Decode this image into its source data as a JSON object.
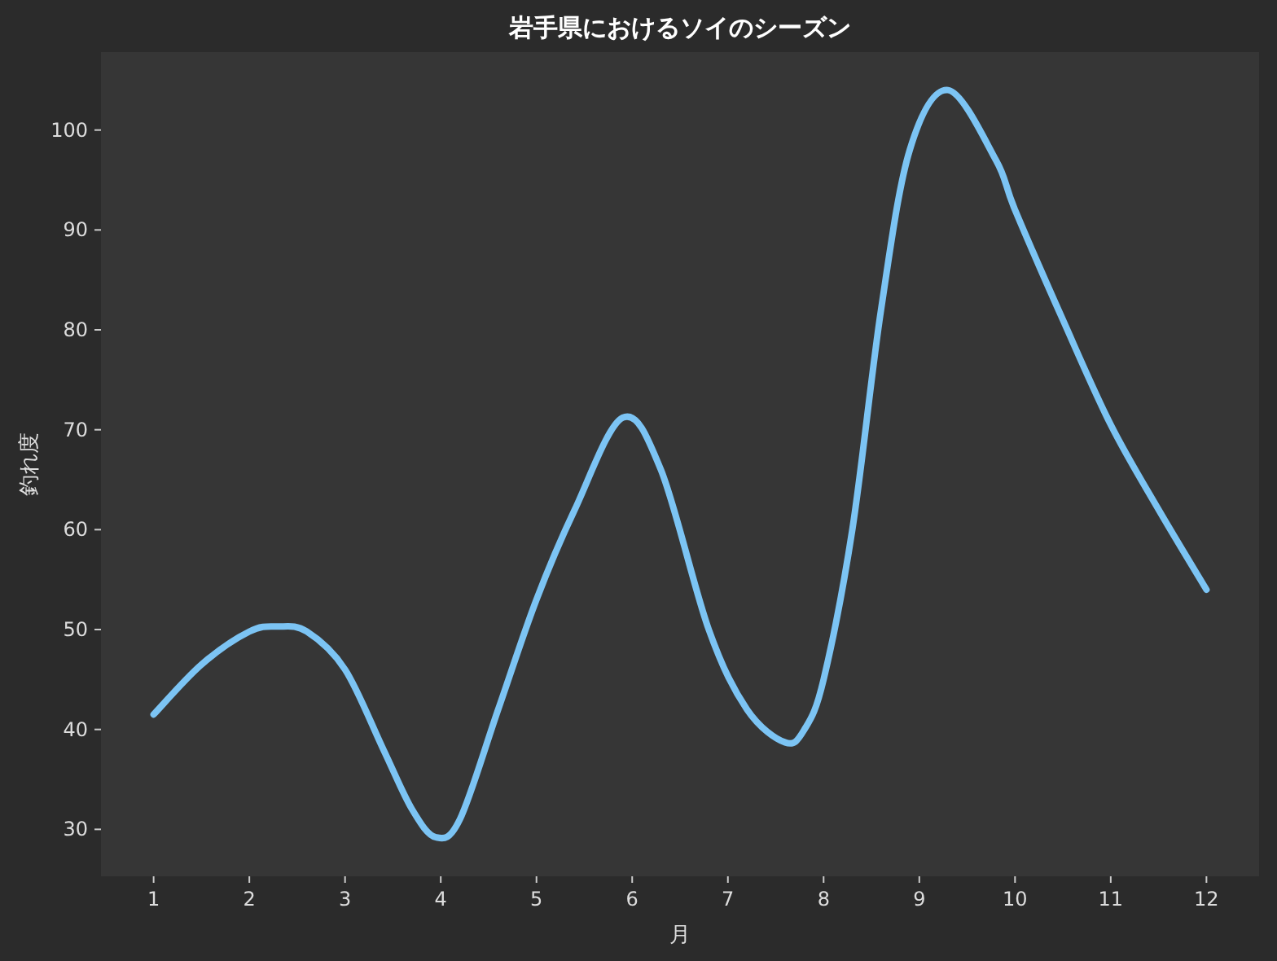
{
  "chart_data": {
    "type": "line",
    "title": "岩手県におけるソイのシーズン",
    "xlabel": "月",
    "ylabel": "釣れ度",
    "series": [
      {
        "color": "#7cc4f4",
        "x": [
          1,
          1.5,
          2,
          2.3,
          2.6,
          3,
          3.4,
          3.7,
          3.95,
          4.2,
          4.6,
          5,
          5.4,
          5.9,
          6.3,
          6.8,
          7.2,
          7.6,
          7.8,
          8,
          8.3,
          8.6,
          8.9,
          9.3,
          9.8,
          10,
          10.5,
          11,
          11.5,
          12
        ],
        "values": [
          41.5,
          46.5,
          49.8,
          50.3,
          49.8,
          46,
          38,
          32,
          29.2,
          31,
          42,
          53,
          62,
          71.2,
          66,
          50,
          42,
          38.7,
          40,
          45,
          60,
          82,
          98,
          104,
          97,
          92,
          81,
          70.5,
          62,
          54
        ]
      }
    ],
    "xlim": [
      0.45,
      12.55
    ],
    "ylim": [
      25.3,
      107.8
    ],
    "xticks": [
      1,
      2,
      3,
      4,
      5,
      6,
      7,
      8,
      9,
      10,
      11,
      12
    ],
    "yticks": [
      30,
      40,
      50,
      60,
      70,
      80,
      90,
      100
    ],
    "grid": false,
    "line_style": "solid",
    "marker": "none"
  }
}
